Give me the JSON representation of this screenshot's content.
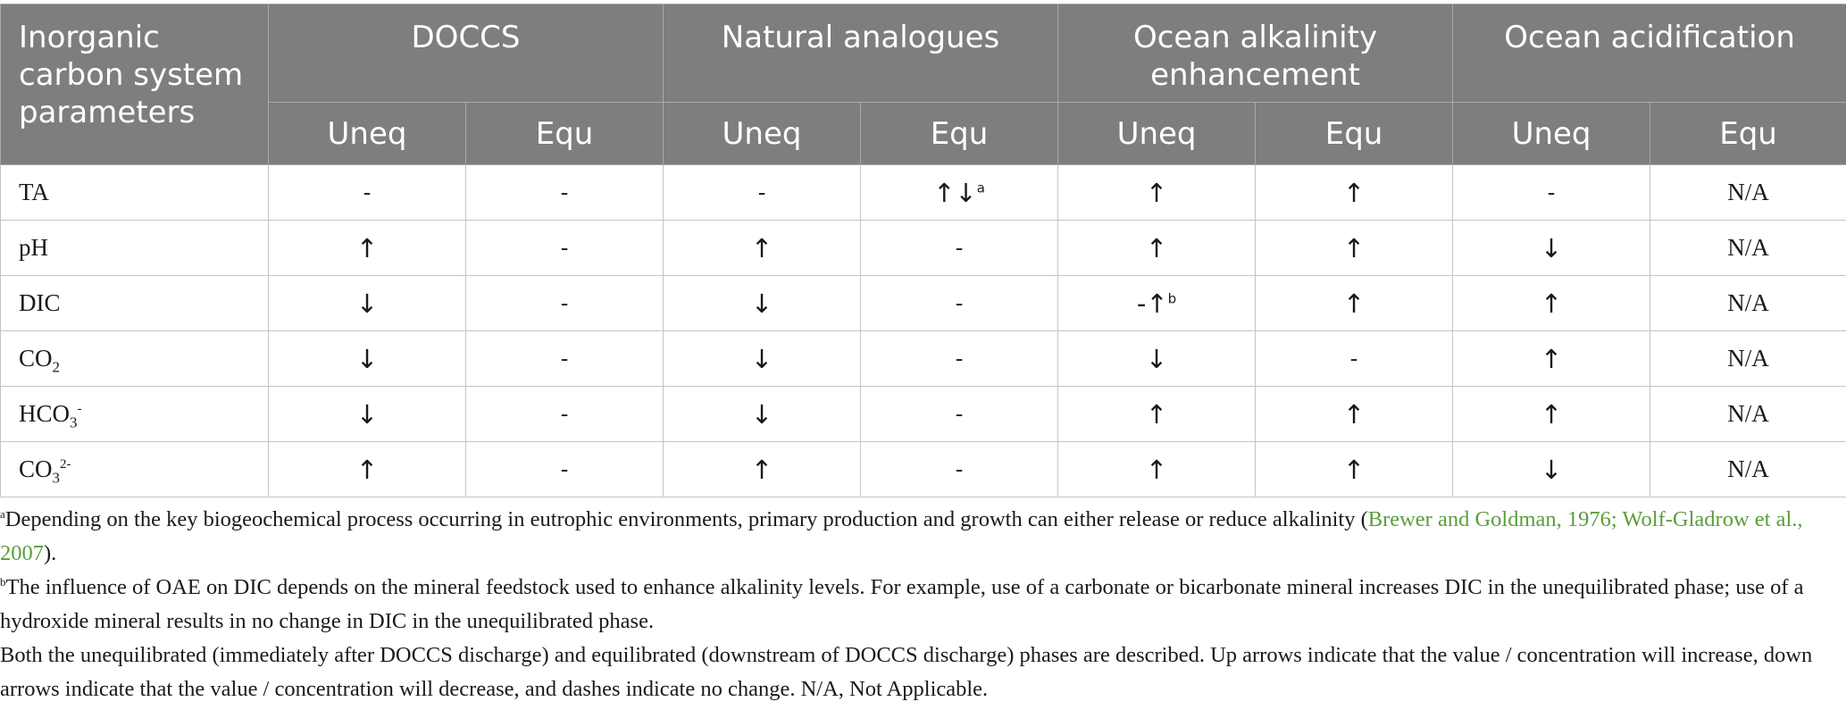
{
  "table": {
    "corner_header": "Inorganic carbon system parameters",
    "groups": [
      "DOCCS",
      "Natural analogues",
      "Ocean alkalinity enhancement",
      "Ocean acidification"
    ],
    "subheaders": [
      "Uneq",
      "Equ",
      "Uneq",
      "Equ",
      "Uneq",
      "Equ",
      "Uneq",
      "Equ"
    ],
    "rows": [
      {
        "param": "TA",
        "param_sub": "",
        "param_sup": "",
        "cells": [
          "-",
          "-",
          "-",
          "↑↓",
          "↑",
          "↑",
          "-",
          "N/A"
        ],
        "notes": [
          "",
          "",
          "",
          "a",
          "",
          "",
          "",
          ""
        ]
      },
      {
        "param": "pH",
        "param_sub": "",
        "param_sup": "",
        "cells": [
          "↑",
          "-",
          "↑",
          "-",
          "↑",
          "↑",
          "↓",
          "N/A"
        ],
        "notes": [
          "",
          "",
          "",
          "",
          "",
          "",
          "",
          ""
        ]
      },
      {
        "param": "DIC",
        "param_sub": "",
        "param_sup": "",
        "cells": [
          "↓",
          "-",
          "↓",
          "-",
          "-↑",
          "↑",
          "↑",
          "N/A"
        ],
        "notes": [
          "",
          "",
          "",
          "",
          "b",
          "",
          "",
          ""
        ]
      },
      {
        "param": "CO",
        "param_sub": "2",
        "param_sup": "",
        "cells": [
          "↓",
          "-",
          "↓",
          "-",
          "↓",
          "-",
          "↑",
          "N/A"
        ],
        "notes": [
          "",
          "",
          "",
          "",
          "",
          "",
          "",
          ""
        ]
      },
      {
        "param": "HCO",
        "param_sub": "3",
        "param_sup": "-",
        "cells": [
          "↓",
          "-",
          "↓",
          "-",
          "↑",
          "↑",
          "↑",
          "N/A"
        ],
        "notes": [
          "",
          "",
          "",
          "",
          "",
          "",
          "",
          ""
        ]
      },
      {
        "param": "CO",
        "param_sub": "3",
        "param_sup": "2-",
        "cells": [
          "↑",
          "-",
          "↑",
          "-",
          "↑",
          "↑",
          "↓",
          "N/A"
        ],
        "notes": [
          "",
          "",
          "",
          "",
          "",
          "",
          "",
          ""
        ]
      }
    ]
  },
  "footnotes": {
    "a_mark": "a",
    "a_text": "Depending on the key biogeochemical process occurring in eutrophic environments, primary production and growth can either release or reduce alkalinity (",
    "a_cite": "Brewer and Goldman, 1976; Wolf-Gladrow et al., 2007",
    "a_end": ").",
    "b_mark": "b",
    "b_text": "The influence of OAE on DIC depends on the mineral feedstock used to enhance alkalinity levels. For example, use of a carbonate or bicarbonate mineral increases DIC in the unequilibrated phase; use of a hydroxide mineral results in no change in DIC in the unequilibrated phase.",
    "general": "Both the unequilibrated (immediately after DOCCS discharge) and equilibrated (downstream of DOCCS discharge) phases are described. Up arrows indicate that the value / concentration will increase, down arrows indicate that the value / concentration will decrease, and dashes indicate no change. N/A, Not Applicable."
  },
  "colors": {
    "header_bg": "#7d7f7e",
    "header_text": "#ffffff",
    "citation_link": "#5a9e3b"
  }
}
